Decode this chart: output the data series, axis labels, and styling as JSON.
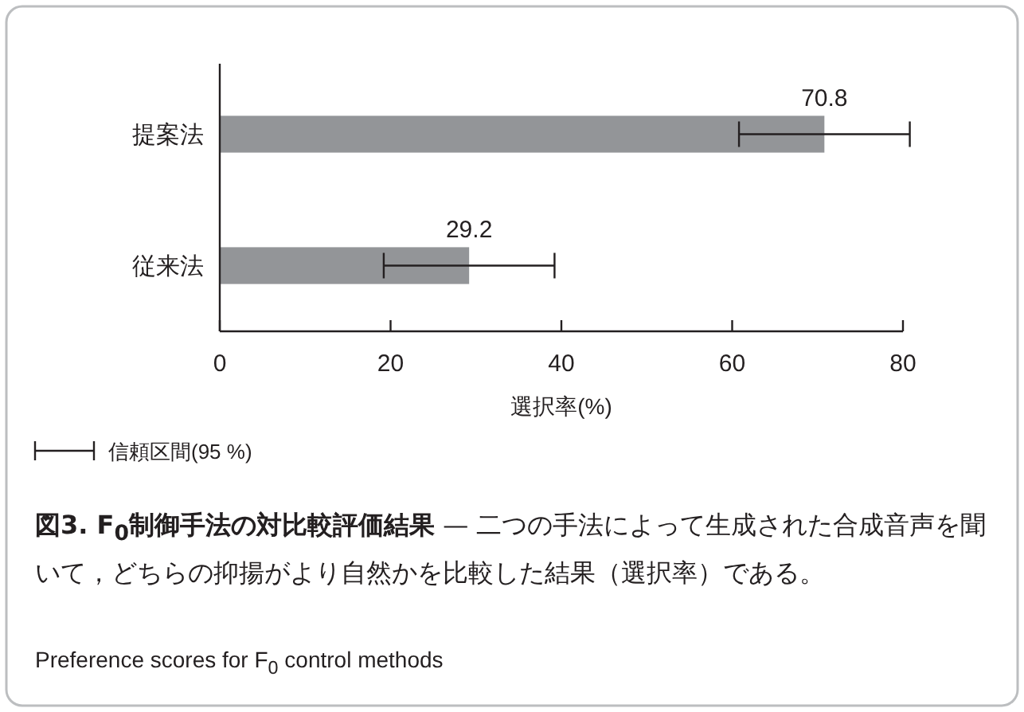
{
  "chart_data": {
    "type": "bar",
    "orientation": "horizontal",
    "title": "図3. F$_{0}$制御手法の対比較評価結果",
    "subtitle": "— 二つの手法によって生成された合成音声を聞いて，どちらの抑揚がより自然かを比較した結果（選択率）である。",
    "xlabel": "選択率(%)",
    "categories": [
      "提案法",
      "従来法"
    ],
    "values": [
      70.8,
      29.2
    ],
    "errors": [
      10,
      10
    ],
    "color": "#939598",
    "xlim": [
      0,
      80
    ],
    "xticks": [
      0,
      20,
      40,
      60,
      80
    ],
    "data_labels": true,
    "grid": false,
    "annotations": [
      "信頼区間(95 %)",
      "Preference scores for F$_{0}$ control methods"
    ]
  }
}
